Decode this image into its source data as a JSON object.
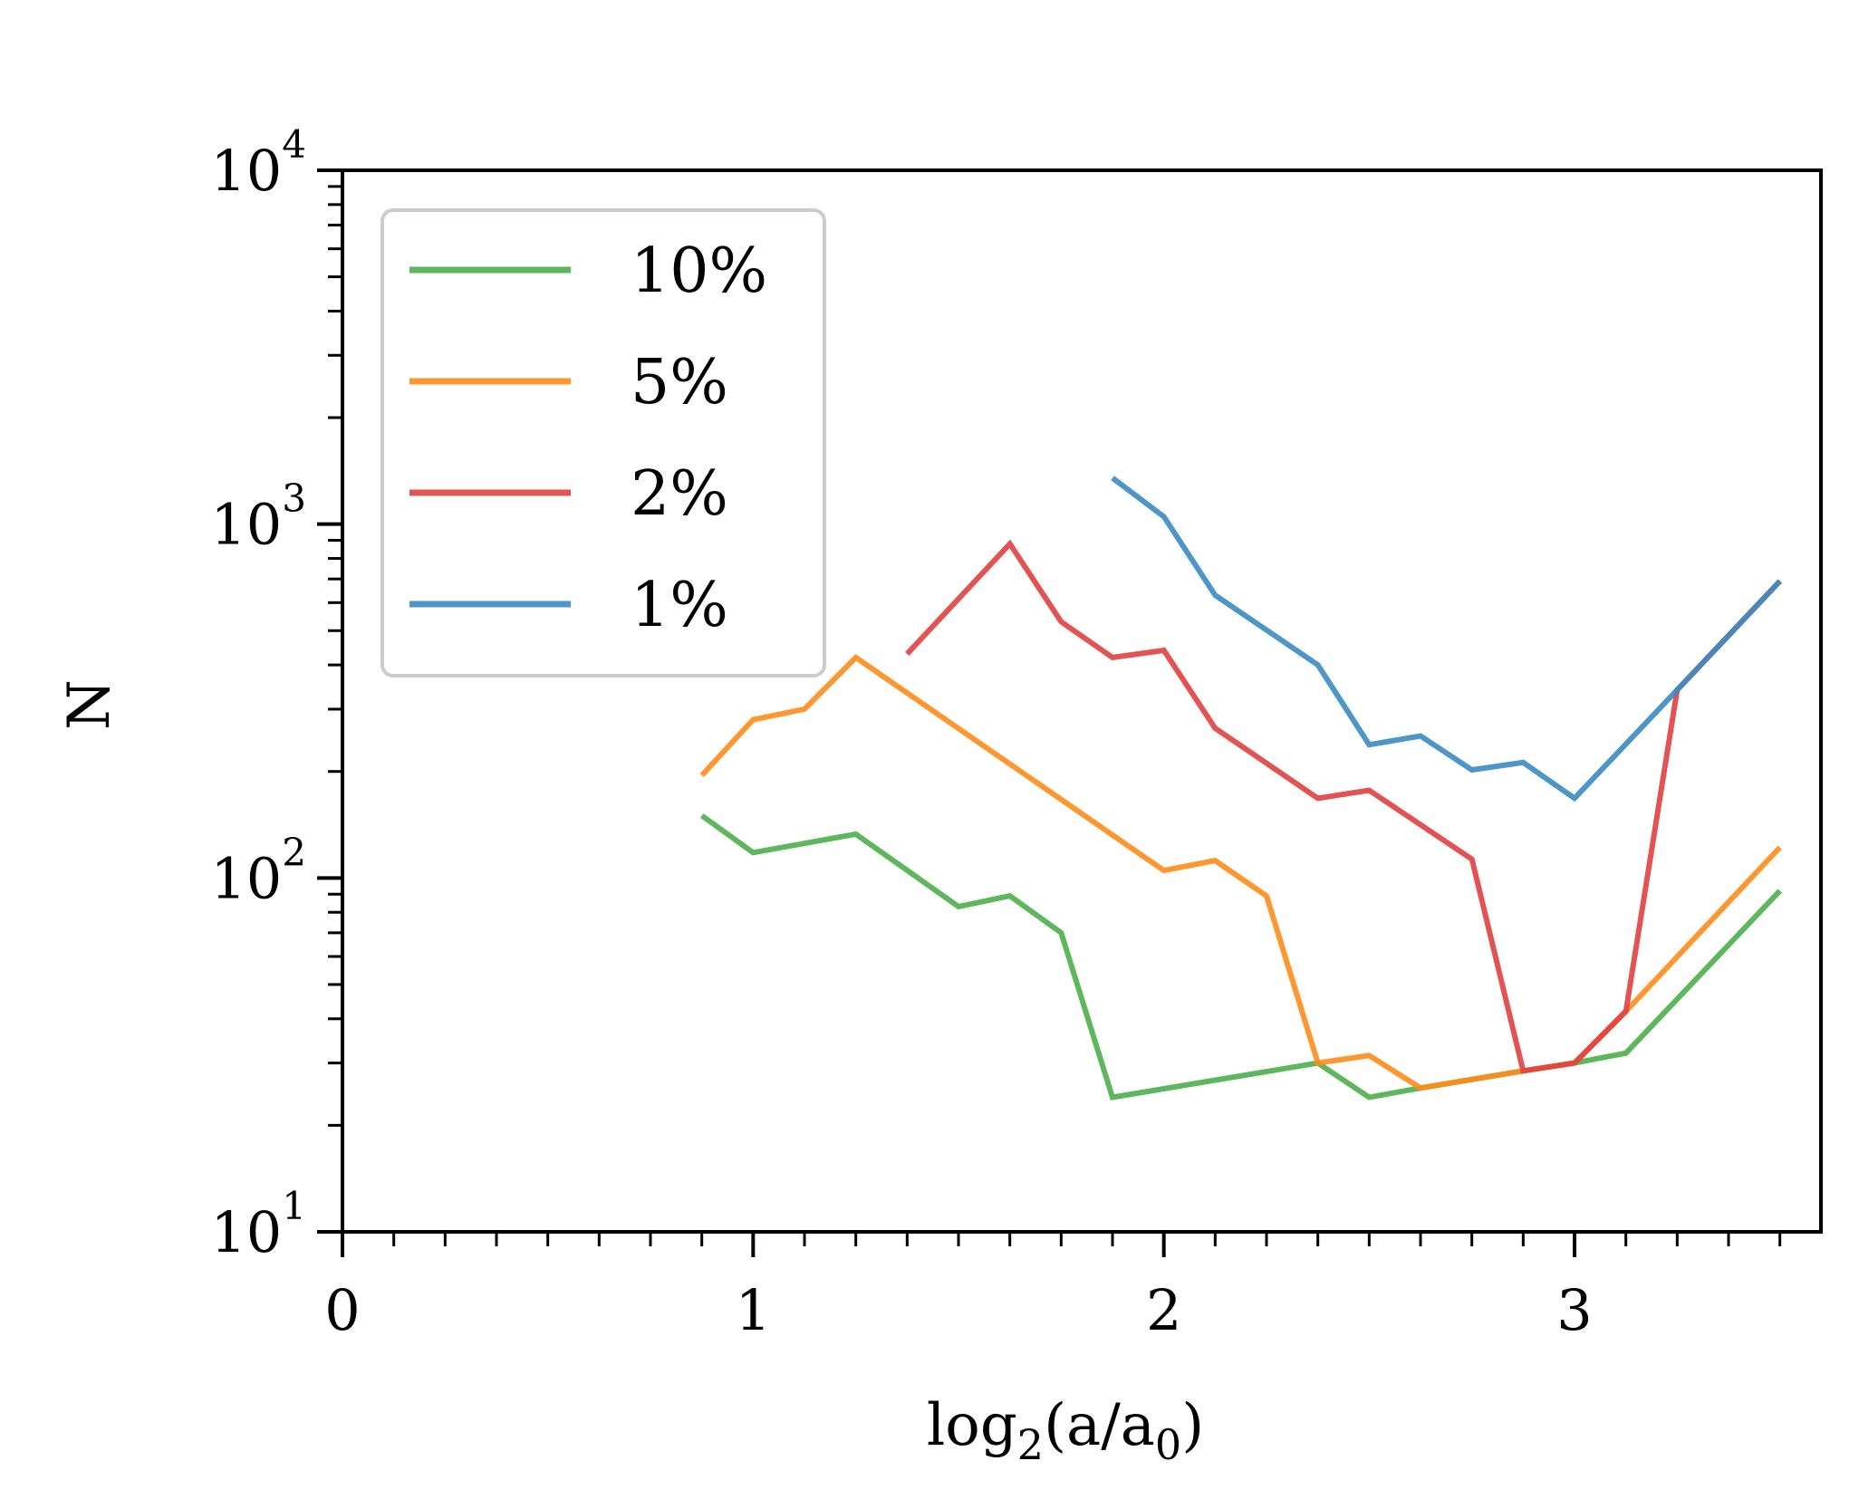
{
  "chart_data": {
    "type": "line",
    "title": "",
    "xlabel": "log2(a/a0)",
    "xlabel_parts": {
      "main": "log",
      "sub1": "2",
      "mid": "(a/a",
      "sub2": "0",
      "end": ")"
    },
    "ylabel": "N",
    "xlim": [
      0,
      3.6
    ],
    "ylim": [
      10,
      10000
    ],
    "yscale": "log",
    "xticks": [
      {
        "value": 0,
        "label": "0"
      },
      {
        "value": 1,
        "label": "1"
      },
      {
        "value": 2,
        "label": "2"
      },
      {
        "value": 3,
        "label": "3"
      }
    ],
    "yticks": [
      {
        "value": 10,
        "base": "10",
        "exp": "1"
      },
      {
        "value": 100,
        "base": "10",
        "exp": "2"
      },
      {
        "value": 1000,
        "base": "10",
        "exp": "3"
      },
      {
        "value": 10000,
        "base": "10",
        "exp": "4"
      }
    ],
    "legend_position": "upper-left",
    "series": [
      {
        "name": "10%",
        "color": "#4daf4a",
        "points": [
          [
            0.875,
            150
          ],
          [
            1.0,
            118
          ],
          [
            1.25,
            133
          ],
          [
            1.5,
            83
          ],
          [
            1.625,
            89
          ],
          [
            1.75,
            70
          ],
          [
            1.875,
            24
          ],
          [
            2.375,
            30
          ],
          [
            2.5,
            24
          ],
          [
            2.625,
            25.5
          ],
          [
            2.875,
            28.5
          ],
          [
            3.0,
            30
          ],
          [
            3.125,
            32
          ],
          [
            3.5,
            92
          ]
        ]
      },
      {
        "name": "5%",
        "color": "#ff8c1a",
        "points": [
          [
            0.875,
            195
          ],
          [
            1.0,
            280
          ],
          [
            1.125,
            300
          ],
          [
            1.25,
            420
          ],
          [
            2.0,
            105
          ],
          [
            2.125,
            112
          ],
          [
            2.25,
            89
          ],
          [
            2.375,
            30
          ],
          [
            2.5,
            31.5
          ],
          [
            2.625,
            25.5
          ],
          [
            2.875,
            28.5
          ],
          [
            3.0,
            30
          ],
          [
            3.125,
            42
          ],
          [
            3.5,
            122
          ]
        ]
      },
      {
        "name": "2%",
        "color": "#e04040",
        "points": [
          [
            1.375,
            430
          ],
          [
            1.625,
            880
          ],
          [
            1.75,
            530
          ],
          [
            1.875,
            420
          ],
          [
            2.0,
            440
          ],
          [
            2.125,
            265
          ],
          [
            2.375,
            168
          ],
          [
            2.5,
            177
          ],
          [
            2.75,
            113
          ],
          [
            2.875,
            28.5
          ],
          [
            3.0,
            30
          ],
          [
            3.125,
            42
          ],
          [
            3.25,
            340
          ],
          [
            3.5,
            690
          ]
        ]
      },
      {
        "name": "1%",
        "color": "#3b8bc2",
        "points": [
          [
            1.875,
            1350
          ],
          [
            2.0,
            1050
          ],
          [
            2.125,
            630
          ],
          [
            2.375,
            400
          ],
          [
            2.5,
            238
          ],
          [
            2.625,
            252
          ],
          [
            2.75,
            202
          ],
          [
            2.875,
            212
          ],
          [
            3.0,
            168
          ],
          [
            3.25,
            340
          ],
          [
            3.5,
            690
          ]
        ]
      }
    ]
  }
}
